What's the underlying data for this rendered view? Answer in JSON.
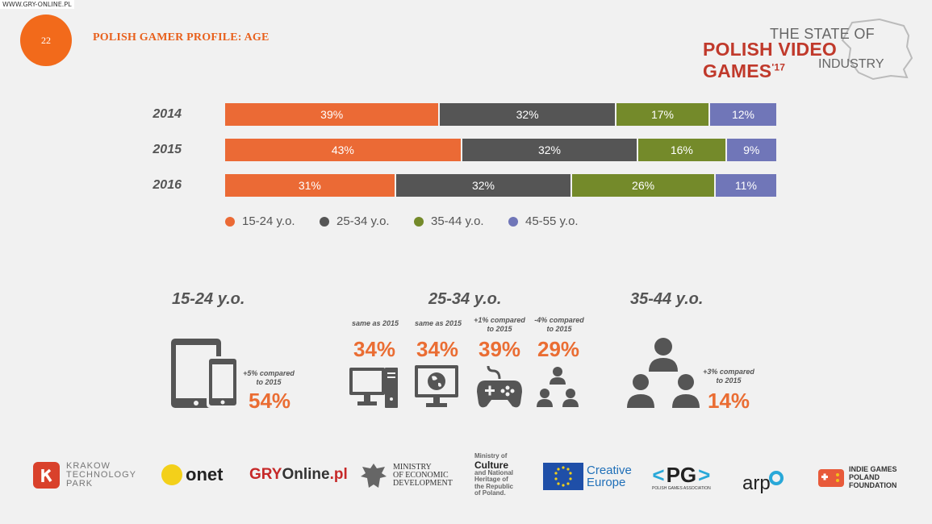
{
  "watermark": "WWW.GRY-ONLINE.PL",
  "page": {
    "number": "22",
    "title": "POLISH GAMER PROFILE: AGE"
  },
  "brand": {
    "line1": "THE STATE OF",
    "line2": "POLISH VIDEO GAMES",
    "year": "'17",
    "line3": "INDUSTRY"
  },
  "colors": {
    "15-24": "#eb6a35",
    "25-34": "#555555",
    "35-44": "#748a2a",
    "45-55": "#7076b8"
  },
  "chart_data": {
    "type": "bar",
    "orientation": "horizontal-stacked-100",
    "categories": [
      "2014",
      "2015",
      "2016"
    ],
    "series": [
      {
        "name": "15-24 y.o.",
        "values": [
          39,
          43,
          31
        ],
        "labels": [
          "39%",
          "43%",
          "31%"
        ]
      },
      {
        "name": "25-34 y.o.",
        "values": [
          32,
          32,
          32
        ],
        "labels": [
          "32%",
          "32%",
          "32%"
        ]
      },
      {
        "name": "35-44 y.o.",
        "values": [
          17,
          16,
          26
        ],
        "labels": [
          "17%",
          "16%",
          "26%"
        ]
      },
      {
        "name": "45-55 y.o.",
        "values": [
          12,
          9,
          11
        ],
        "labels": [
          "12%",
          "9%",
          "11%"
        ]
      }
    ],
    "legend_position": "bottom-left",
    "grid": false
  },
  "segments": {
    "young": {
      "heading": "15-24 y.o.",
      "items": [
        {
          "icon": "tablet-phone-icon",
          "note": "+5% compared to 2015",
          "pct": "54%"
        }
      ]
    },
    "mid": {
      "heading": "25-34 y.o.",
      "items": [
        {
          "icon": "desktop-pc-icon",
          "note": "same as 2015",
          "pct": "34%"
        },
        {
          "icon": "globe-monitor-icon",
          "note": "same as 2015",
          "pct": "34%"
        },
        {
          "icon": "gamepad-icon",
          "note": "+1% compared to 2015",
          "pct": "39%"
        },
        {
          "icon": "people-group-icon",
          "note": "-4% compared to 2015",
          "pct": "29%"
        }
      ]
    },
    "old": {
      "heading": "35-44 y.o.",
      "items": [
        {
          "icon": "people-hierarchy-icon",
          "note": "+3% compared to 2015",
          "pct": "14%"
        }
      ]
    }
  },
  "footer_logos": {
    "ktp": {
      "l1": "KRAKOW",
      "l2": "TECHNOLOGY",
      "l3": "PARK"
    },
    "onet": "onet",
    "gry": {
      "a": "GRY",
      "b": "Online",
      "c": ".pl"
    },
    "ministry_econ": {
      "l1": "MINISTRY",
      "l2": "OF ECONOMIC",
      "l3": "DEVELOPMENT"
    },
    "ministry_culture": {
      "l1": "Ministry of",
      "l2": "Culture",
      "l3": "and National",
      "l4": "Heritage of",
      "l5": "the Republic",
      "l6": "of Poland."
    },
    "creative": {
      "l1": "Creative",
      "l2": "Europe"
    },
    "pg": {
      "mark": "PG",
      "sub": "POLISH GAMES ASSOCIATION"
    },
    "arp": "arp",
    "igpf": {
      "l1": "INDIE GAMES",
      "l2": "POLAND",
      "l3": "FOUNDATION"
    }
  }
}
